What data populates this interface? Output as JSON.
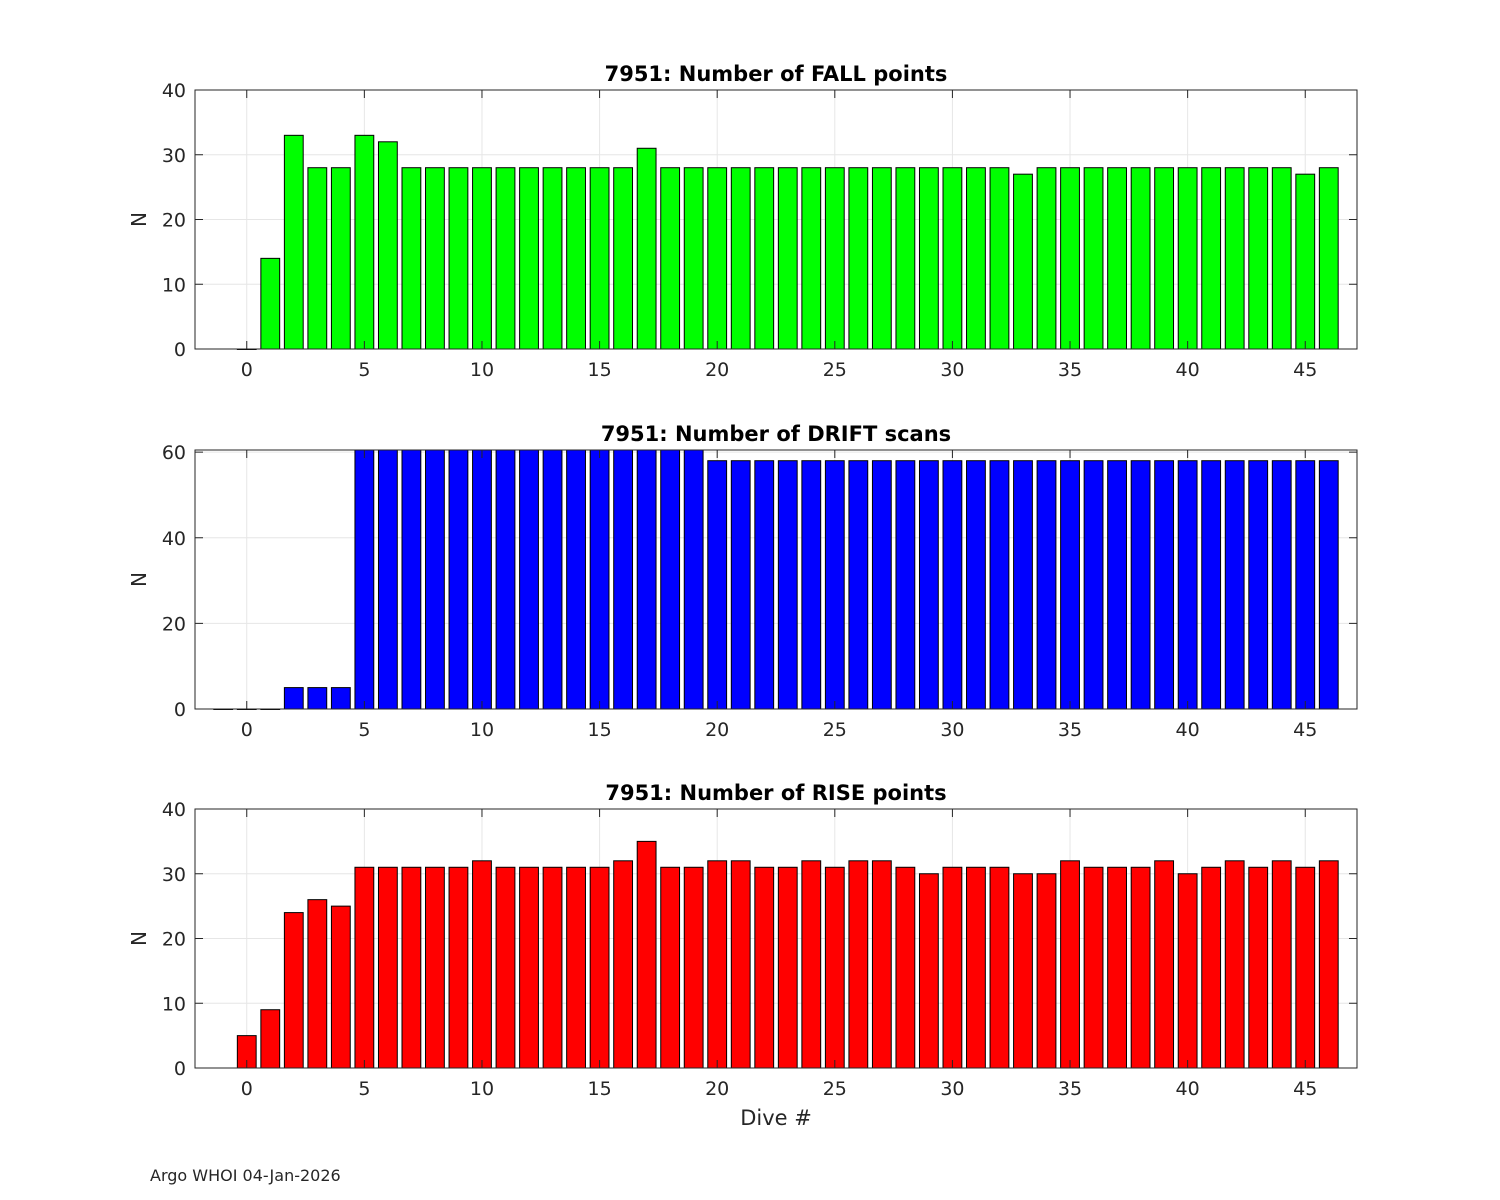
{
  "footer": "Argo WHOI 04-Jan-2026",
  "chart_data": [
    {
      "type": "bar",
      "title": "7951: Number of FALL points",
      "xlabel": "",
      "ylabel": "N",
      "color": "#00ff00",
      "xlim": [
        -2.2,
        47.2
      ],
      "ylim": [
        0,
        40
      ],
      "xticks": [
        0,
        5,
        10,
        15,
        20,
        25,
        30,
        35,
        40,
        45
      ],
      "yticks": [
        0,
        10,
        20,
        30,
        40
      ],
      "grid": true,
      "x": [
        0,
        1,
        2,
        3,
        4,
        5,
        6,
        7,
        8,
        9,
        10,
        11,
        12,
        13,
        14,
        15,
        16,
        17,
        18,
        19,
        20,
        21,
        22,
        23,
        24,
        25,
        26,
        27,
        28,
        29,
        30,
        31,
        32,
        33,
        34,
        35,
        36,
        37,
        38,
        39,
        40,
        41,
        42,
        43,
        44,
        45,
        46
      ],
      "values": [
        0,
        14,
        33,
        28,
        28,
        33,
        32,
        28,
        28,
        28,
        28,
        28,
        28,
        28,
        28,
        28,
        28,
        31,
        28,
        28,
        28,
        28,
        28,
        28,
        28,
        28,
        28,
        28,
        28,
        28,
        28,
        28,
        28,
        27,
        28,
        28,
        28,
        28,
        28,
        28,
        28,
        28,
        28,
        28,
        28,
        27,
        28
      ]
    },
    {
      "type": "bar",
      "title": "7951: Number of DRIFT scans",
      "xlabel": "",
      "ylabel": "N",
      "color": "#0000ff",
      "xlim": [
        -2.2,
        47.2
      ],
      "ylim": [
        0,
        60.5
      ],
      "xticks": [
        0,
        5,
        10,
        15,
        20,
        25,
        30,
        35,
        40,
        45
      ],
      "yticks": [
        0,
        20,
        40,
        60
      ],
      "grid": true,
      "x": [
        -1,
        0,
        1,
        2,
        3,
        4,
        5,
        6,
        7,
        8,
        9,
        10,
        11,
        12,
        13,
        14,
        15,
        16,
        17,
        18,
        19,
        20,
        21,
        22,
        23,
        24,
        25,
        26,
        27,
        28,
        29,
        30,
        31,
        32,
        33,
        34,
        35,
        36,
        37,
        38,
        39,
        40,
        41,
        42,
        43,
        44,
        45,
        46
      ],
      "values": [
        0,
        0,
        0,
        5,
        5,
        5,
        61,
        61,
        61,
        61,
        61,
        61,
        61,
        61,
        61,
        61,
        61,
        61,
        61,
        61,
        61,
        58,
        58,
        58,
        58,
        58,
        58,
        58,
        58,
        58,
        58,
        58,
        58,
        58,
        58,
        58,
        58,
        58,
        58,
        58,
        58,
        58,
        58,
        58,
        58,
        58,
        58,
        58
      ]
    },
    {
      "type": "bar",
      "title": "7951: Number of RISE points",
      "xlabel": "Dive #",
      "ylabel": "N",
      "color": "#ff0000",
      "xlim": [
        -2.2,
        47.2
      ],
      "ylim": [
        0,
        40
      ],
      "xticks": [
        0,
        5,
        10,
        15,
        20,
        25,
        30,
        35,
        40,
        45
      ],
      "yticks": [
        0,
        10,
        20,
        30,
        40
      ],
      "grid": true,
      "x": [
        0,
        1,
        2,
        3,
        4,
        5,
        6,
        7,
        8,
        9,
        10,
        11,
        12,
        13,
        14,
        15,
        16,
        17,
        18,
        19,
        20,
        21,
        22,
        23,
        24,
        25,
        26,
        27,
        28,
        29,
        30,
        31,
        32,
        33,
        34,
        35,
        36,
        37,
        38,
        39,
        40,
        41,
        42,
        43,
        44,
        45,
        46
      ],
      "values": [
        5,
        9,
        24,
        26,
        25,
        31,
        31,
        31,
        31,
        31,
        32,
        31,
        31,
        31,
        31,
        31,
        32,
        35,
        31,
        31,
        32,
        32,
        31,
        31,
        32,
        31,
        32,
        32,
        31,
        30,
        31,
        31,
        31,
        30,
        30,
        32,
        31,
        31,
        31,
        32,
        30,
        31,
        32,
        31,
        32,
        31,
        32
      ]
    }
  ]
}
